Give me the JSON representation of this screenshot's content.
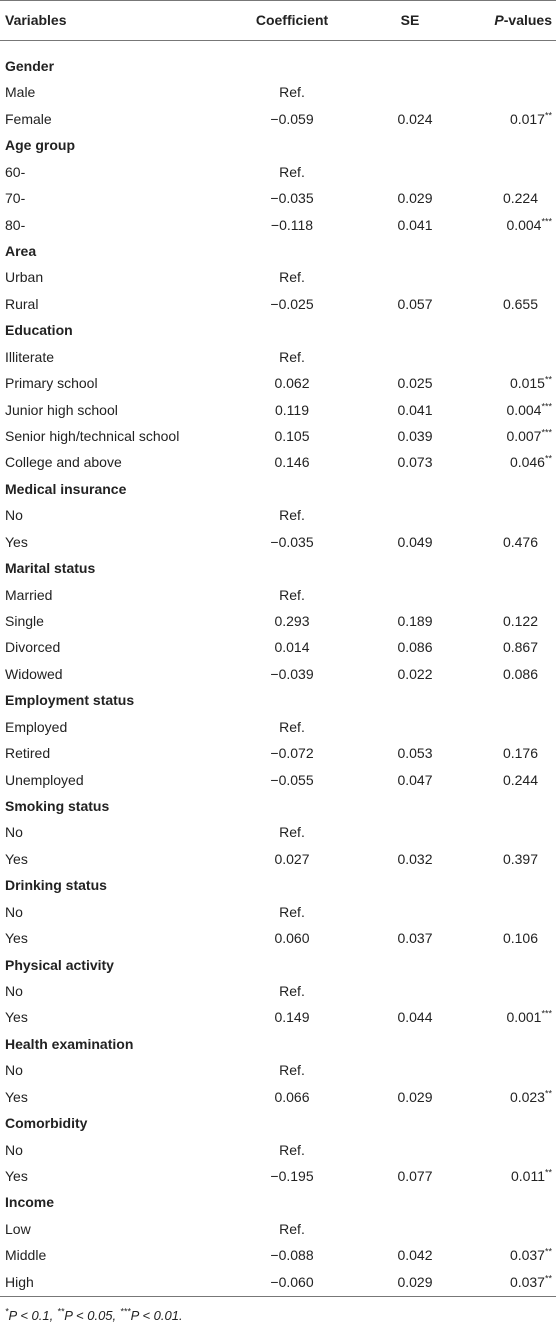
{
  "table": {
    "header": {
      "variable": "Variables",
      "coef": "Coefficient",
      "se": "SE",
      "p": {
        "italic": "P",
        "text": "-values"
      }
    },
    "rows": [
      {
        "group": "Gender"
      },
      {
        "label": "Male",
        "coef": "Ref."
      },
      {
        "label": "Female",
        "coef": "−0.059",
        "se": "0.024",
        "p": "0.017",
        "sig": "**"
      },
      {
        "group": "Age group"
      },
      {
        "label": "60-",
        "coef": "Ref."
      },
      {
        "label": "70-",
        "coef": "−0.035",
        "se": "0.029",
        "p": "0.224"
      },
      {
        "label": "80-",
        "coef": "−0.118",
        "se": "0.041",
        "p": "0.004",
        "sig": "***"
      },
      {
        "group": "Area"
      },
      {
        "label": "Urban",
        "coef": "Ref."
      },
      {
        "label": "Rural",
        "coef": "−0.025",
        "se": "0.057",
        "p": "0.655"
      },
      {
        "group": "Education"
      },
      {
        "label": "Illiterate",
        "coef": "Ref."
      },
      {
        "label": "Primary school",
        "coef": "0.062",
        "se": "0.025",
        "p": "0.015",
        "sig": "**"
      },
      {
        "label": "Junior high school",
        "coef": "0.119",
        "se": "0.041",
        "p": "0.004",
        "sig": "***"
      },
      {
        "label": "Senior high/technical school",
        "coef": "0.105",
        "se": "0.039",
        "p": "0.007",
        "sig": "***"
      },
      {
        "label": "College and above",
        "coef": "0.146",
        "se": "0.073",
        "p": "0.046",
        "sig": "**"
      },
      {
        "group": "Medical insurance"
      },
      {
        "label": "No",
        "coef": "Ref."
      },
      {
        "label": "Yes",
        "coef": "−0.035",
        "se": "0.049",
        "p": "0.476"
      },
      {
        "group": "Marital status"
      },
      {
        "label": "Married",
        "coef": "Ref."
      },
      {
        "label": "Single",
        "coef": "0.293",
        "se": "0.189",
        "p": "0.122"
      },
      {
        "label": "Divorced",
        "coef": "0.014",
        "se": "0.086",
        "p": "0.867"
      },
      {
        "label": "Widowed",
        "coef": "−0.039",
        "se": "0.022",
        "p": "0.086"
      },
      {
        "group": "Employment status"
      },
      {
        "label": "Employed",
        "coef": "Ref."
      },
      {
        "label": "Retired",
        "coef": "−0.072",
        "se": "0.053",
        "p": "0.176"
      },
      {
        "label": "Unemployed",
        "coef": "−0.055",
        "se": "0.047",
        "p": "0.244"
      },
      {
        "group": "Smoking status"
      },
      {
        "label": "No",
        "coef": "Ref."
      },
      {
        "label": "Yes",
        "coef": "0.027",
        "se": "0.032",
        "p": "0.397"
      },
      {
        "group": "Drinking status"
      },
      {
        "label": "No",
        "coef": "Ref."
      },
      {
        "label": "Yes",
        "coef": "0.060",
        "se": "0.037",
        "p": "0.106"
      },
      {
        "group": "Physical activity"
      },
      {
        "label": "No",
        "coef": "Ref."
      },
      {
        "label": "Yes",
        "coef": "0.149",
        "se": "0.044",
        "p": "0.001",
        "sig": "***"
      },
      {
        "group": "Health examination"
      },
      {
        "label": "No",
        "coef": "Ref."
      },
      {
        "label": "Yes",
        "coef": "0.066",
        "se": "0.029",
        "p": "0.023",
        "sig": "**"
      },
      {
        "group": "Comorbidity"
      },
      {
        "label": "No",
        "coef": "Ref."
      },
      {
        "label": "Yes",
        "coef": "−0.195",
        "se": "0.077",
        "p": "0.011",
        "sig": "**"
      },
      {
        "group": "Income"
      },
      {
        "label": "Low",
        "coef": "Ref."
      },
      {
        "label": "Middle",
        "coef": "−0.088",
        "se": "0.042",
        "p": "0.037",
        "sig": "**"
      },
      {
        "label": "High",
        "coef": "−0.060",
        "se": "0.029",
        "p": "0.037",
        "sig": "**"
      }
    ],
    "footnote": [
      {
        "sup": "*",
        "text": "P < 0.1,"
      },
      {
        "sup": "**",
        "text": "P < 0.05,"
      },
      {
        "sup": "***",
        "text": "P < 0.01."
      }
    ]
  }
}
